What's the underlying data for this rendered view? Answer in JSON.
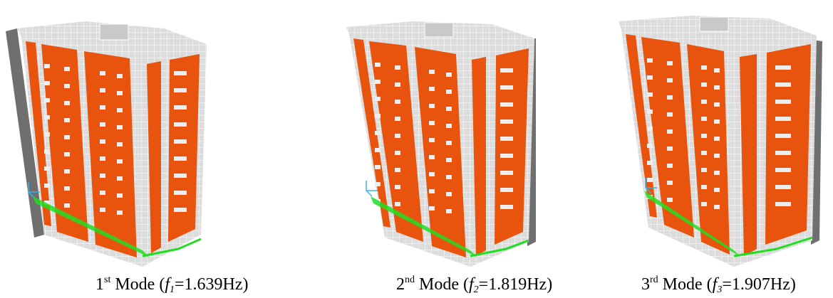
{
  "colors": {
    "wall": "#e8540e",
    "slab": "#dcdcdc",
    "grid": "#ffffff",
    "shadow": "#6f6f6f",
    "support": "#22dd22",
    "axes": "#33b5e5"
  },
  "modes": [
    {
      "ordinal": "1",
      "suffix": "st",
      "label": "Mode",
      "f_symbol": "f",
      "f_index": "1",
      "value": "=1.639Hz",
      "frequency_hz": 1.639
    },
    {
      "ordinal": "2",
      "suffix": "nd",
      "label": "Mode",
      "f_symbol": "f",
      "f_index": "2",
      "value": "=1.819Hz",
      "frequency_hz": 1.819
    },
    {
      "ordinal": "3",
      "suffix": "rd",
      "label": "Mode",
      "f_symbol": "f",
      "f_index": "3",
      "value": "=1.907Hz",
      "frequency_hz": 1.907
    }
  ]
}
